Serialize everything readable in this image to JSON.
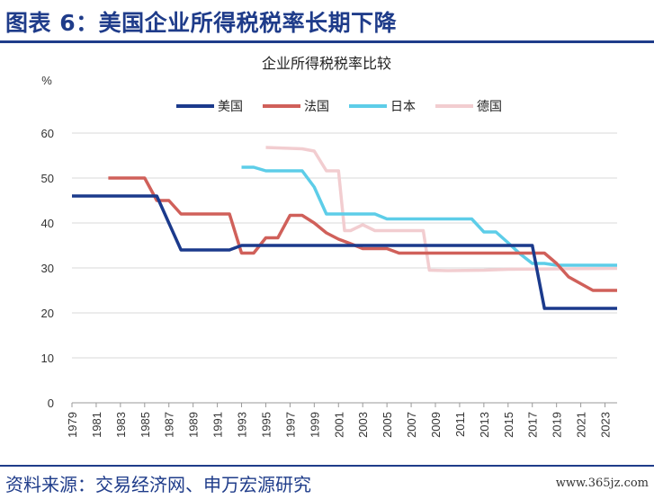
{
  "header": {
    "title": "图表 6：美国企业所得税税率长期下降"
  },
  "footer": {
    "source": "资料来源：交易经济网、申万宏源研究",
    "watermark": "www.365jz.com"
  },
  "chart_data": {
    "type": "line",
    "title": "企业所得税税率比较",
    "ylabel": "%",
    "xlabel": "",
    "ylim": [
      0,
      60
    ],
    "yticks": [
      0,
      10,
      20,
      30,
      40,
      50,
      60
    ],
    "xlim": [
      1979,
      2024
    ],
    "xticks": [
      1979,
      1981,
      1983,
      1985,
      1987,
      1989,
      1991,
      1993,
      1995,
      1997,
      1999,
      2001,
      2003,
      2005,
      2007,
      2009,
      2011,
      2013,
      2015,
      2017,
      2019,
      2021,
      2023
    ],
    "grid": "y",
    "legend_position": "top",
    "series": [
      {
        "name": "美国",
        "color": "#1b3a8c",
        "points": [
          [
            1979,
            46
          ],
          [
            1986,
            46
          ],
          [
            1987,
            40
          ],
          [
            1988,
            34
          ],
          [
            1992,
            34
          ],
          [
            1993,
            35
          ],
          [
            2017,
            35
          ],
          [
            2018,
            21
          ],
          [
            2024,
            21
          ]
        ]
      },
      {
        "name": "法国",
        "color": "#d0605a",
        "points": [
          [
            1982,
            50
          ],
          [
            1985,
            50
          ],
          [
            1986,
            45
          ],
          [
            1987,
            45
          ],
          [
            1988,
            42
          ],
          [
            1992,
            42
          ],
          [
            1993,
            33.3
          ],
          [
            1994,
            33.3
          ],
          [
            1995,
            36.7
          ],
          [
            1996,
            36.7
          ],
          [
            1997,
            41.7
          ],
          [
            1998,
            41.7
          ],
          [
            1999,
            40
          ],
          [
            2000,
            37.8
          ],
          [
            2001,
            36.4
          ],
          [
            2002,
            35.4
          ],
          [
            2003,
            34.3
          ],
          [
            2005,
            34.3
          ],
          [
            2006,
            33.3
          ],
          [
            2018,
            33.3
          ],
          [
            2019,
            31
          ],
          [
            2020,
            28
          ],
          [
            2021,
            26.5
          ],
          [
            2022,
            25
          ],
          [
            2024,
            25
          ]
        ]
      },
      {
        "name": "日本",
        "color": "#5dcde8",
        "points": [
          [
            1993,
            52.4
          ],
          [
            1994,
            52.4
          ],
          [
            1995,
            51.6
          ],
          [
            1998,
            51.6
          ],
          [
            1999,
            48
          ],
          [
            2000,
            42
          ],
          [
            2004,
            42
          ],
          [
            2005,
            40.9
          ],
          [
            2012,
            40.9
          ],
          [
            2013,
            38
          ],
          [
            2014,
            38
          ],
          [
            2015,
            35.6
          ],
          [
            2016,
            33.1
          ],
          [
            2017,
            31
          ],
          [
            2018,
            31
          ],
          [
            2019,
            30.6
          ],
          [
            2024,
            30.6
          ]
        ]
      },
      {
        "name": "德国",
        "color": "#f2cdd0",
        "points": [
          [
            1995,
            56.8
          ],
          [
            1998,
            56.5
          ],
          [
            1999,
            56
          ],
          [
            2000,
            51.6
          ],
          [
            2001,
            51.6
          ],
          [
            2001.5,
            38.3
          ],
          [
            2002,
            38.3
          ],
          [
            2003,
            39.6
          ],
          [
            2004,
            38.3
          ],
          [
            2008,
            38.3
          ],
          [
            2008.5,
            29.5
          ],
          [
            2010,
            29.4
          ],
          [
            2013,
            29.5
          ],
          [
            2015,
            29.7
          ],
          [
            2024,
            29.9
          ]
        ]
      }
    ]
  }
}
